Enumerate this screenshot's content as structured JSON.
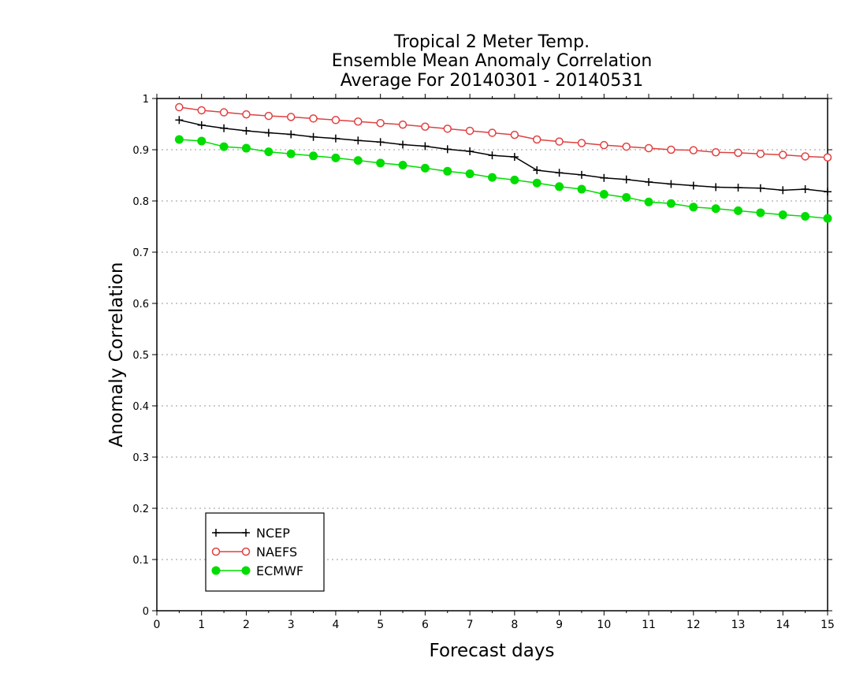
{
  "chart_data": {
    "type": "line",
    "title_lines": [
      "Tropical 2 Meter Temp.",
      "Ensemble Mean Anomaly Correlation",
      "Average For 20140301 - 20140531"
    ],
    "xlabel": "Forecast days",
    "ylabel": "Anomaly Correlation",
    "xlim": [
      0,
      15
    ],
    "ylim": [
      0,
      1
    ],
    "x_ticks": [
      "0",
      "1",
      "2",
      "3",
      "4",
      "5",
      "6",
      "7",
      "8",
      "9",
      "10",
      "11",
      "12",
      "13",
      "14",
      "15"
    ],
    "y_ticks": [
      "0",
      "0.1",
      "0.2",
      "0.3",
      "0.4",
      "0.5",
      "0.6",
      "0.7",
      "0.8",
      "0.9",
      "1"
    ],
    "grid": "horizontal dotted",
    "legend_position": "bottom-left",
    "x": [
      0.5,
      1,
      1.5,
      2,
      2.5,
      3,
      3.5,
      4,
      4.5,
      5,
      5.5,
      6,
      6.5,
      7,
      7.5,
      8,
      8.5,
      9,
      9.5,
      10,
      10.5,
      11,
      11.5,
      12,
      12.5,
      13,
      13.5,
      14,
      14.5,
      15
    ],
    "series": [
      {
        "name": "NCEP",
        "color": "#000000",
        "marker": "plus",
        "values": [
          0.958,
          0.948,
          0.942,
          0.937,
          0.933,
          0.93,
          0.925,
          0.922,
          0.918,
          0.915,
          0.91,
          0.907,
          0.901,
          0.897,
          0.889,
          0.886,
          0.86,
          0.855,
          0.851,
          0.845,
          0.842,
          0.837,
          0.833,
          0.83,
          0.827,
          0.826,
          0.825,
          0.821,
          0.823,
          0.818
        ]
      },
      {
        "name": "NAEFS",
        "color": "#e04040",
        "marker": "open-circle",
        "values": [
          0.983,
          0.977,
          0.973,
          0.969,
          0.966,
          0.964,
          0.961,
          0.958,
          0.955,
          0.952,
          0.949,
          0.945,
          0.941,
          0.937,
          0.933,
          0.929,
          0.92,
          0.916,
          0.913,
          0.909,
          0.906,
          0.903,
          0.9,
          0.899,
          0.895,
          0.894,
          0.892,
          0.89,
          0.887,
          0.885
        ]
      },
      {
        "name": "ECMWF",
        "color": "#00dd00",
        "marker": "filled-circle",
        "values": [
          0.92,
          0.917,
          0.906,
          0.903,
          0.896,
          0.892,
          0.888,
          0.884,
          0.879,
          0.874,
          0.87,
          0.864,
          0.858,
          0.853,
          0.846,
          0.841,
          0.835,
          0.828,
          0.823,
          0.813,
          0.807,
          0.798,
          0.795,
          0.788,
          0.785,
          0.781,
          0.777,
          0.773,
          0.77,
          0.766
        ]
      }
    ]
  }
}
